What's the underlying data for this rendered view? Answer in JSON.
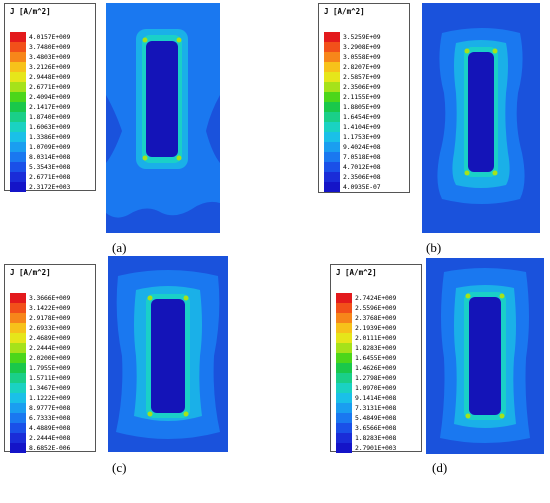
{
  "panels": [
    {
      "label": "(a)",
      "legend_title": "J [A/m^2]",
      "values": [
        "4.0157E+009",
        "3.7480E+009",
        "3.4803E+009",
        "3.2126E+009",
        "2.9448E+009",
        "2.6771E+009",
        "2.4094E+009",
        "2.1417E+009",
        "1.8740E+009",
        "1.6063E+009",
        "1.3386E+009",
        "1.0709E+009",
        "8.0314E+008",
        "5.3543E+008",
        "2.6771E+008",
        "2.3172E+003"
      ]
    },
    {
      "label": "(b)",
      "legend_title": "J [A/m^2]",
      "values": [
        "3.5259E+09",
        "3.2908E+09",
        "3.0558E+09",
        "2.8207E+09",
        "2.5857E+09",
        "2.3506E+09",
        "2.1155E+09",
        "1.8805E+09",
        "1.6454E+09",
        "1.4104E+09",
        "1.1753E+09",
        "9.4024E+08",
        "7.0518E+08",
        "4.7012E+08",
        "2.3506E+08",
        "4.0935E-07"
      ]
    },
    {
      "label": "(c)",
      "legend_title": "J [A/m^2]",
      "values": [
        "3.3666E+009",
        "3.1422E+009",
        "2.9178E+009",
        "2.6933E+009",
        "2.4689E+009",
        "2.2444E+009",
        "2.0200E+009",
        "1.7955E+009",
        "1.5711E+009",
        "1.3467E+009",
        "1.1222E+009",
        "8.9777E+008",
        "6.7333E+008",
        "4.4889E+008",
        "2.2444E+008",
        "8.6852E-006"
      ]
    },
    {
      "label": "(d)",
      "legend_title": "J [A/m^2]",
      "values": [
        "2.7424E+009",
        "2.5596E+009",
        "2.3768E+009",
        "2.1939E+009",
        "2.0111E+009",
        "1.8283E+009",
        "1.6455E+009",
        "1.4626E+009",
        "1.2798E+009",
        "1.0970E+009",
        "9.1414E+008",
        "7.3131E+008",
        "5.4849E+008",
        "3.6566E+008",
        "1.8283E+008",
        "2.7901E+003"
      ]
    }
  ],
  "colors": {
    "scale": [
      "#e31a1c",
      "#f2501a",
      "#f7861a",
      "#f7c21a",
      "#e6e61a",
      "#a6e21a",
      "#4cd61a",
      "#1ac84a",
      "#1acf88",
      "#1ad2c2",
      "#1ac0e8",
      "#1a9ef0",
      "#1a78f0",
      "#1a50e8",
      "#1a2cd8",
      "#1414c8"
    ],
    "background": "#1a52dc",
    "pale": "#1a78f0",
    "halo": "#1ab0e8",
    "ring": "#1ad0c8",
    "core": "#1414b8",
    "hotspot": "#a6e21a"
  }
}
